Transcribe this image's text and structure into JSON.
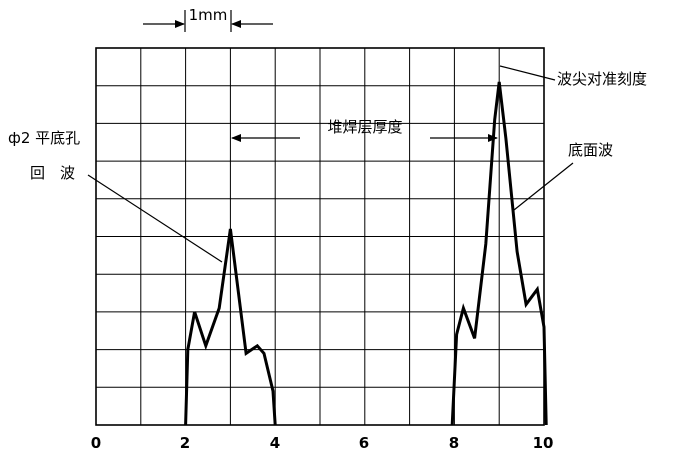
{
  "scale_label": "1mm",
  "labels": {
    "peak_marker": "波尖对准刻度",
    "thickness": "堆焊层厚度",
    "hole_echo_line1": "ф2 平底孔",
    "hole_echo_line2": "回　波",
    "bottom_echo": "底面波"
  },
  "axis_ticks": [
    "0",
    "2",
    "4",
    "6",
    "8",
    "10"
  ],
  "grid": {
    "columns": 10,
    "rows": 10
  },
  "colors": {
    "ink": "#000000",
    "paper": "#ffffff"
  },
  "chart_data": {
    "type": "line",
    "x_range": [
      0,
      10
    ],
    "y_range": [
      0,
      10
    ],
    "series": [
      {
        "points": [
          [
            2.0,
            0
          ],
          [
            2.05,
            2.0
          ],
          [
            2.2,
            3.0
          ],
          [
            2.45,
            2.1
          ],
          [
            2.75,
            3.1
          ],
          [
            3.0,
            5.2
          ],
          [
            3.35,
            1.9
          ],
          [
            3.6,
            2.1
          ],
          [
            3.75,
            1.9
          ],
          [
            3.95,
            0.9
          ],
          [
            4.0,
            0
          ]
        ]
      },
      {
        "points": [
          [
            7.95,
            0
          ],
          [
            8.05,
            2.4
          ],
          [
            8.2,
            3.1
          ],
          [
            8.45,
            2.3
          ],
          [
            8.7,
            4.8
          ],
          [
            8.9,
            8.1
          ],
          [
            9.0,
            9.1
          ],
          [
            9.15,
            7.6
          ],
          [
            9.4,
            4.6
          ],
          [
            9.6,
            3.2
          ],
          [
            9.85,
            3.6
          ],
          [
            10.0,
            2.6
          ],
          [
            10.05,
            0
          ]
        ]
      }
    ]
  }
}
